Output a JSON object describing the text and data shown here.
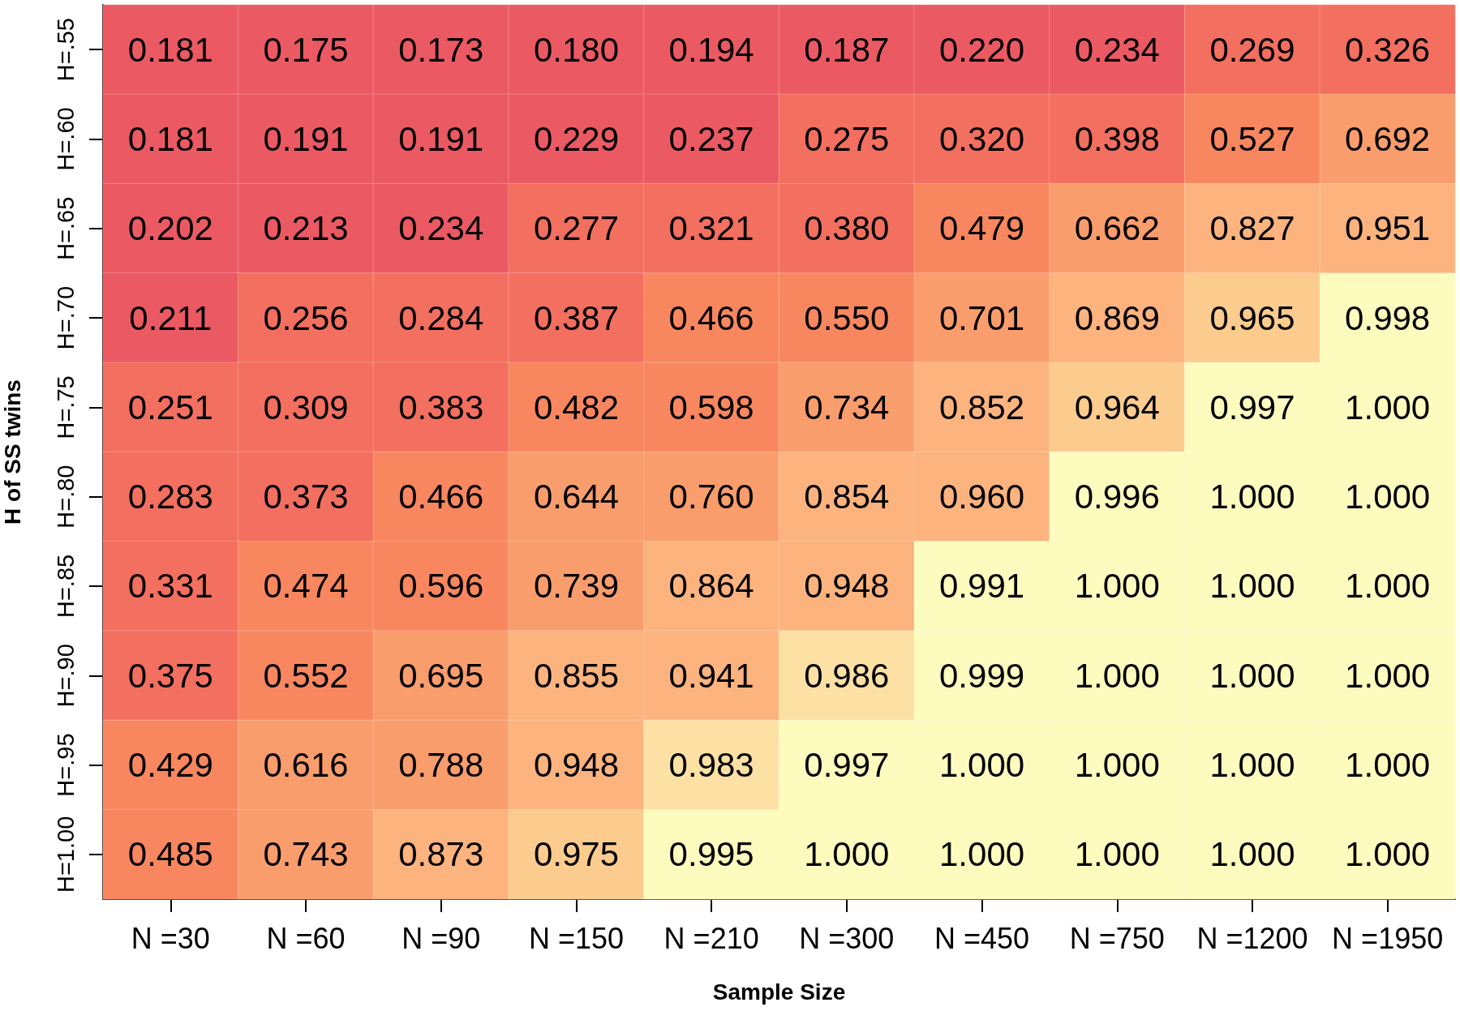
{
  "chart_data": {
    "type": "heatmap",
    "xlabel": "Sample Size",
    "ylabel": "H of SS twins",
    "categories": [
      "N =30",
      "N =60",
      "N =90",
      "N =150",
      "N =210",
      "N =300",
      "N =450",
      "N =750",
      "N =1200",
      "N =1950"
    ],
    "y_categories": [
      "H=.55",
      "H=.60",
      "H=.65",
      "H=.70",
      "H=.75",
      "H=.80",
      "H=.85",
      "H=.90",
      "H=.95",
      "H=1.00"
    ],
    "cells": [
      [
        0.181,
        0.175,
        0.173,
        0.18,
        0.194,
        0.187,
        0.22,
        0.234,
        0.269,
        0.326
      ],
      [
        0.181,
        0.191,
        0.191,
        0.229,
        0.237,
        0.275,
        0.32,
        0.398,
        0.527,
        0.692
      ],
      [
        0.202,
        0.213,
        0.234,
        0.277,
        0.321,
        0.38,
        0.479,
        0.662,
        0.827,
        0.951
      ],
      [
        0.211,
        0.256,
        0.284,
        0.387,
        0.466,
        0.55,
        0.701,
        0.869,
        0.965,
        0.998
      ],
      [
        0.251,
        0.309,
        0.383,
        0.482,
        0.598,
        0.734,
        0.852,
        0.964,
        0.997,
        1.0
      ],
      [
        0.283,
        0.373,
        0.466,
        0.644,
        0.76,
        0.854,
        0.96,
        0.996,
        1.0,
        1.0
      ],
      [
        0.331,
        0.474,
        0.596,
        0.739,
        0.864,
        0.948,
        0.991,
        1.0,
        1.0,
        1.0
      ],
      [
        0.375,
        0.552,
        0.695,
        0.855,
        0.941,
        0.986,
        0.999,
        1.0,
        1.0,
        1.0
      ],
      [
        0.429,
        0.616,
        0.788,
        0.948,
        0.983,
        0.997,
        1.0,
        1.0,
        1.0,
        1.0
      ],
      [
        0.485,
        0.743,
        0.873,
        0.975,
        0.995,
        1.0,
        1.0,
        1.0,
        1.0,
        1.0
      ]
    ],
    "cell_labels": [
      [
        "0.181",
        "0.175",
        "0.173",
        "0.180",
        "0.194",
        "0.187",
        "0.220",
        "0.234",
        "0.269",
        "0.326"
      ],
      [
        "0.181",
        "0.191",
        "0.191",
        "0.229",
        "0.237",
        "0.275",
        "0.320",
        "0.398",
        "0.527",
        "0.692"
      ],
      [
        "0.202",
        "0.213",
        "0.234",
        "0.277",
        "0.321",
        "0.380",
        "0.479",
        "0.662",
        "0.827",
        "0.951"
      ],
      [
        "0.211",
        "0.256",
        "0.284",
        "0.387",
        "0.466",
        "0.550",
        "0.701",
        "0.869",
        "0.965",
        "0.998"
      ],
      [
        "0.251",
        "0.309",
        "0.383",
        "0.482",
        "0.598",
        "0.734",
        "0.852",
        "0.964",
        "0.997",
        "1.000"
      ],
      [
        "0.283",
        "0.373",
        "0.466",
        "0.644",
        "0.760",
        "0.854",
        "0.960",
        "0.996",
        "1.000",
        "1.000"
      ],
      [
        "0.331",
        "0.474",
        "0.596",
        "0.739",
        "0.864",
        "0.948",
        "0.991",
        "1.000",
        "1.000",
        "1.000"
      ],
      [
        "0.375",
        "0.552",
        "0.695",
        "0.855",
        "0.941",
        "0.986",
        "0.999",
        "1.000",
        "1.000",
        "1.000"
      ],
      [
        "0.429",
        "0.616",
        "0.788",
        "0.948",
        "0.983",
        "0.997",
        "1.000",
        "1.000",
        "1.000",
        "1.000"
      ],
      [
        "0.485",
        "0.743",
        "0.873",
        "0.975",
        "0.995",
        "1.000",
        "1.000",
        "1.000",
        "1.000",
        "1.000"
      ]
    ],
    "colors": [
      [
        "#eb5a63",
        "#eb5a63",
        "#eb5a63",
        "#eb5a63",
        "#eb5a63",
        "#eb5a63",
        "#eb5a63",
        "#eb5a63",
        "#f36f5f",
        "#f36f5f"
      ],
      [
        "#eb5a63",
        "#eb5a63",
        "#eb5a63",
        "#eb5a63",
        "#eb5a63",
        "#f36f5f",
        "#f36f5f",
        "#f36f5f",
        "#f8875f",
        "#fa9d6c"
      ],
      [
        "#eb5a63",
        "#eb5a63",
        "#eb5a63",
        "#f36f5f",
        "#f36f5f",
        "#f36f5f",
        "#f8875f",
        "#fa9d6c",
        "#fcb37e",
        "#fcb37e"
      ],
      [
        "#eb5a63",
        "#f36f5f",
        "#f36f5f",
        "#f36f5f",
        "#f8875f",
        "#f8875f",
        "#fa9d6c",
        "#fcb37e",
        "#fccb8e",
        "#fefbbe"
      ],
      [
        "#f36f5f",
        "#f36f5f",
        "#f36f5f",
        "#f8875f",
        "#f8875f",
        "#fa9d6c",
        "#fcb37e",
        "#fccb8e",
        "#fefbbe",
        "#fefbbe"
      ],
      [
        "#f36f5f",
        "#f36f5f",
        "#f8875f",
        "#fa9d6c",
        "#fa9d6c",
        "#fcb37e",
        "#fcb37e",
        "#fefbbe",
        "#fefbbe",
        "#fefbbe"
      ],
      [
        "#f36f5f",
        "#f8875f",
        "#f8875f",
        "#fa9d6c",
        "#fcb37e",
        "#fcb37e",
        "#fefbbe",
        "#fefbbe",
        "#fefbbe",
        "#fefbbe"
      ],
      [
        "#f36f5f",
        "#f8875f",
        "#fa9d6c",
        "#fcb37e",
        "#fcb37e",
        "#fde0a3",
        "#fefbbe",
        "#fefbbe",
        "#fefbbe",
        "#fefbbe"
      ],
      [
        "#f8875f",
        "#fa9d6c",
        "#fa9d6c",
        "#fcb37e",
        "#fde0a3",
        "#fefbbe",
        "#fefbbe",
        "#fefbbe",
        "#fefbbe",
        "#fefbbe"
      ],
      [
        "#f8875f",
        "#fa9d6c",
        "#fcb37e",
        "#fccb8e",
        "#fefbbe",
        "#fefbbe",
        "#fefbbe",
        "#fefbbe",
        "#fefbbe",
        "#fefbbe"
      ]
    ]
  }
}
